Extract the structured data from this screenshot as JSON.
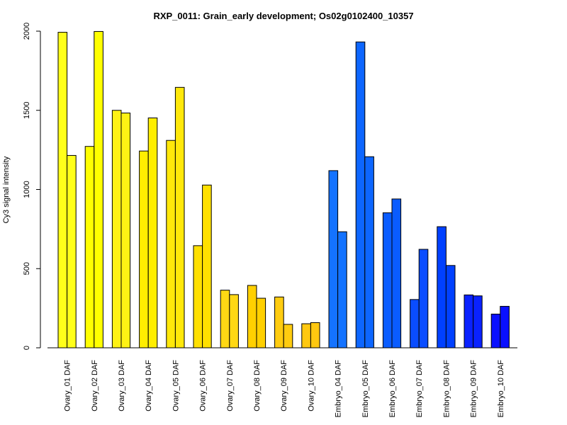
{
  "chart_data": {
    "type": "bar",
    "title": "RXP_0011: Grain_early development; Os02g0102400_10357",
    "xlabel": "",
    "ylabel": "Cy3 signal intensity",
    "ylim": [
      0,
      2000
    ],
    "yticks": [
      "0",
      "500",
      "1000",
      "1500",
      "2000"
    ],
    "ytick_values": [
      0,
      500,
      1000,
      1500,
      2000
    ],
    "grid": false,
    "legend": "none",
    "categories": [
      "Ovary_01 DAF",
      "Ovary_02 DAF",
      "Ovary_03 DAF",
      "Ovary_04 DAF",
      "Ovary_05 DAF",
      "Ovary_06 DAF",
      "Ovary_07 DAF",
      "Ovary_08 DAF",
      "Ovary_09 DAF",
      "Ovary_10 DAF",
      "Embryo_04 DAF",
      "Embryo_05 DAF",
      "Embryo_06 DAF",
      "Embryo_07 DAF",
      "Embryo_08 DAF",
      "Embryo_09 DAF",
      "Embryo_10 DAF"
    ],
    "colors": [
      "#ffff1a",
      "#ffff00",
      "#fff214",
      "#ffee00",
      "#ffe80a",
      "#ffe000",
      "#ffd814",
      "#ffd000",
      "#ffcc10",
      "#ffc810",
      "#1473ff",
      "#0d66ff",
      "#0a5cff",
      "#0a4dff",
      "#0040ff",
      "#0a22ff",
      "#0a10ff"
    ],
    "series": [
      {
        "values": [
          1993,
          1272,
          1500,
          1243,
          1310,
          645,
          364,
          394,
          321,
          152,
          1119,
          1932,
          853,
          305,
          765,
          334,
          213
        ]
      },
      {
        "values": [
          1215,
          1998,
          1483,
          1452,
          1645,
          1028,
          336,
          313,
          148,
          159,
          733,
          1207,
          940,
          622,
          520,
          328,
          262
        ]
      }
    ]
  }
}
